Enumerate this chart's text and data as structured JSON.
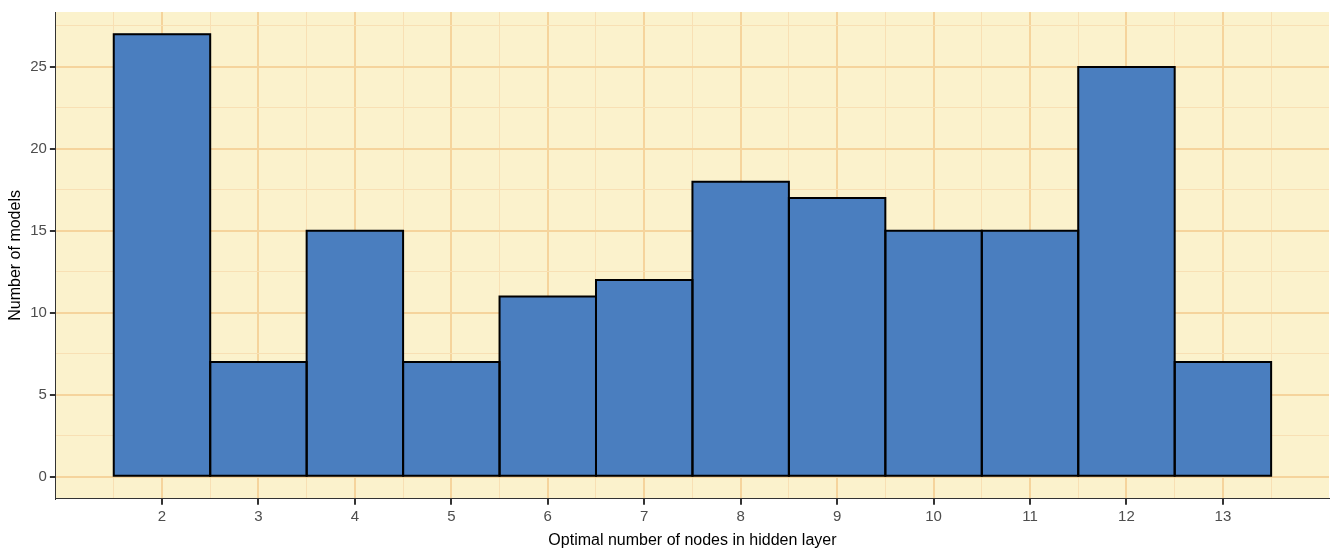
{
  "chart_data": {
    "type": "histogram",
    "xlabel": "Optimal number of nodes in hidden layer",
    "ylabel": "Number of models",
    "bins": [
      1.5,
      2.5,
      3.5,
      4.5,
      5.5,
      6.5,
      7.5,
      8.5,
      9.5,
      10.5,
      11.5,
      12.5,
      13.5
    ],
    "values": [
      27,
      7,
      15,
      7,
      11,
      12,
      18,
      17,
      15,
      15,
      25,
      7
    ],
    "color": "#4a7ebf",
    "xlim": [
      0.9,
      14.1
    ],
    "xticks": [
      {
        "value": 1.5,
        "label": null
      },
      2,
      {
        "value": 2.5,
        "label": null
      },
      3,
      {
        "value": 3.5,
        "label": null
      },
      4,
      {
        "value": 4.5,
        "label": null
      },
      5,
      {
        "value": 5.5,
        "label": null
      },
      6,
      {
        "value": 6.5,
        "label": null
      },
      7,
      {
        "value": 7.5,
        "label": null
      },
      8,
      {
        "value": 8.5,
        "label": null
      },
      9,
      {
        "value": 9.5,
        "label": null
      },
      10,
      {
        "value": 10.5,
        "label": null
      },
      11,
      {
        "value": 11.5,
        "label": null
      },
      12,
      {
        "value": 12.5,
        "label": null
      },
      13,
      {
        "value": 13.5,
        "label": null
      }
    ],
    "ylim": [
      -1.35,
      28.35
    ],
    "yticks": [
      0,
      {
        "value": 2.5,
        "label": null
      },
      5,
      {
        "value": 7.5,
        "label": null
      },
      10,
      {
        "value": 12.5,
        "label": null
      },
      15,
      {
        "value": 17.5,
        "label": null
      },
      20,
      {
        "value": 22.5,
        "label": null
      },
      25,
      {
        "value": 27.5,
        "label": null
      }
    ],
    "grid": true,
    "legend": false
  }
}
